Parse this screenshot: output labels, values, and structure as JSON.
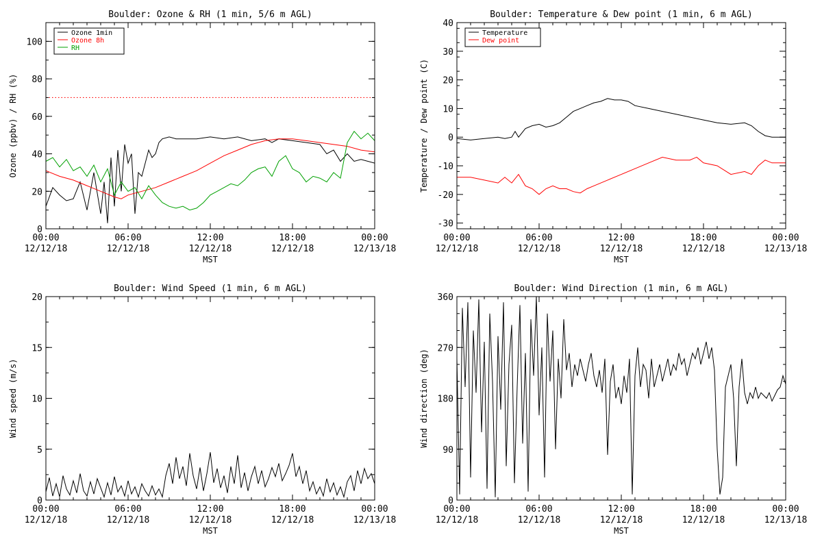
{
  "chart_data": [
    {
      "type": "line",
      "title": "Boulder: Ozone & RH (1 min, 5/6 m AGL)",
      "xlabel": "MST",
      "ylabel": "Ozone (ppbv) / RH (%)",
      "xticks": [
        {
          "h": 0,
          "time": "00:00",
          "date": "12/12/18"
        },
        {
          "h": 6,
          "time": "06:00",
          "date": "12/12/18"
        },
        {
          "h": 12,
          "time": "12:00",
          "date": "12/12/18"
        },
        {
          "h": 18,
          "time": "18:00",
          "date": "12/12/18"
        },
        {
          "h": 24,
          "time": "00:00",
          "date": "12/13/18"
        }
      ],
      "xlim": [
        0,
        24
      ],
      "ylim": [
        0,
        110
      ],
      "yticks": [
        "0",
        "20",
        "40",
        "60",
        "80",
        "100"
      ],
      "ytick_values": [
        0,
        20,
        40,
        60,
        80,
        100
      ],
      "legend_position": "top-left",
      "reference_line": {
        "value": 70,
        "color": "#ff0000",
        "style": "dotted"
      },
      "series": [
        {
          "name": "Ozone 1min",
          "color": "#000000",
          "x": [
            0,
            0.5,
            1,
            1.5,
            2,
            2.5,
            3,
            3.5,
            4,
            4.25,
            4.5,
            4.75,
            5,
            5.25,
            5.5,
            5.75,
            6,
            6.25,
            6.5,
            6.75,
            7,
            7.25,
            7.5,
            7.75,
            8,
            8.25,
            8.5,
            9,
            9.5,
            10,
            11,
            12,
            13,
            14,
            15,
            16,
            16.5,
            17,
            18,
            19,
            20,
            20.5,
            21,
            21.5,
            22,
            22.5,
            23,
            24
          ],
          "y": [
            12,
            22,
            18,
            15,
            16,
            25,
            10,
            30,
            8,
            25,
            3,
            38,
            12,
            42,
            20,
            45,
            35,
            40,
            8,
            30,
            28,
            35,
            42,
            38,
            40,
            46,
            48,
            49,
            48,
            48,
            48,
            49,
            48,
            49,
            47,
            48,
            46,
            48,
            47,
            46,
            45,
            40,
            42,
            36,
            40,
            36,
            37,
            35
          ]
        },
        {
          "name": "Ozone 8h",
          "color": "#ff0000",
          "x": [
            0,
            1,
            2,
            3,
            4,
            5,
            5.5,
            6,
            7,
            8,
            9,
            10,
            11,
            12,
            13,
            14,
            15,
            16,
            17,
            18,
            19,
            20,
            21,
            22,
            23,
            24
          ],
          "y": [
            31,
            28,
            26,
            23,
            20,
            17,
            16,
            18,
            20,
            22,
            25,
            28,
            31,
            35,
            39,
            42,
            45,
            47,
            48,
            48,
            47,
            46,
            45,
            44,
            42,
            41
          ]
        },
        {
          "name": "RH",
          "color": "#00a000",
          "x": [
            0,
            0.5,
            1,
            1.5,
            2,
            2.5,
            3,
            3.5,
            4,
            4.5,
            5,
            5.5,
            6,
            6.5,
            7,
            7.5,
            8,
            8.5,
            9,
            9.5,
            10,
            10.5,
            11,
            11.5,
            12,
            12.5,
            13,
            13.5,
            14,
            14.5,
            15,
            15.5,
            16,
            16.5,
            17,
            17.5,
            18,
            18.5,
            19,
            19.5,
            20,
            20.5,
            21,
            21.5,
            22,
            22.5,
            23,
            23.5,
            24
          ],
          "y": [
            36,
            38,
            33,
            37,
            31,
            33,
            28,
            34,
            25,
            32,
            18,
            25,
            20,
            22,
            16,
            23,
            18,
            14,
            12,
            11,
            12,
            10,
            11,
            14,
            18,
            20,
            22,
            24,
            23,
            26,
            30,
            32,
            33,
            28,
            36,
            39,
            32,
            30,
            25,
            28,
            27,
            25,
            30,
            27,
            46,
            52,
            48,
            51,
            47
          ]
        }
      ]
    },
    {
      "type": "line",
      "title": "Boulder: Temperature & Dew point (1 min, 6 m AGL)",
      "xlabel": "MST",
      "ylabel": "Temperature / Dew point (C)",
      "xticks": [
        {
          "h": 0,
          "time": "00:00",
          "date": "12/12/18"
        },
        {
          "h": 6,
          "time": "06:00",
          "date": "12/12/18"
        },
        {
          "h": 12,
          "time": "12:00",
          "date": "12/12/18"
        },
        {
          "h": 18,
          "time": "18:00",
          "date": "12/12/18"
        },
        {
          "h": 24,
          "time": "00:00",
          "date": "12/13/18"
        }
      ],
      "xlim": [
        0,
        24
      ],
      "ylim": [
        -32,
        40
      ],
      "yticks": [
        "-30",
        "-20",
        "-10",
        "0",
        "10",
        "20",
        "30",
        "40"
      ],
      "ytick_values": [
        -30,
        -20,
        -10,
        0,
        10,
        20,
        30,
        40
      ],
      "legend_position": "top-left",
      "series": [
        {
          "name": "Temperature",
          "color": "#000000",
          "x": [
            0,
            1,
            2,
            3,
            3.5,
            4,
            4.25,
            4.5,
            5,
            5.5,
            6,
            6.5,
            7,
            7.5,
            8,
            8.5,
            9,
            9.5,
            10,
            10.5,
            11,
            11.5,
            12,
            12.5,
            13,
            14,
            15,
            16,
            17,
            18,
            19,
            20,
            21,
            21.5,
            22,
            22.5,
            23,
            24
          ],
          "y": [
            -0.5,
            -1,
            -0.5,
            0,
            -0.5,
            0,
            2,
            0,
            3,
            4,
            4.5,
            3.5,
            4,
            5,
            7,
            9,
            10,
            11,
            12,
            12.5,
            13.5,
            13,
            13,
            12.5,
            11,
            10,
            9,
            8,
            7,
            6,
            5,
            4.5,
            5,
            4,
            2,
            0.5,
            0,
            0
          ]
        },
        {
          "name": "Dew point",
          "color": "#ff0000",
          "x": [
            0,
            1,
            2,
            3,
            3.5,
            4,
            4.5,
            5,
            5.5,
            6,
            6.5,
            7,
            7.5,
            8,
            8.5,
            9,
            9.5,
            10,
            11,
            12,
            13,
            14,
            15,
            16,
            17,
            17.5,
            18,
            19,
            20,
            21,
            21.5,
            22,
            22.5,
            23,
            24
          ],
          "y": [
            -14,
            -14,
            -15,
            -16,
            -14,
            -16,
            -13,
            -17,
            -18,
            -20,
            -18,
            -17,
            -18,
            -18,
            -19,
            -19.5,
            -18,
            -17,
            -15,
            -13,
            -11,
            -9,
            -7,
            -8,
            -8,
            -7,
            -9,
            -10,
            -13,
            -12,
            -13,
            -10,
            -8,
            -9,
            -9
          ]
        }
      ]
    },
    {
      "type": "line",
      "title": "Boulder: Wind Speed (1 min, 6 m AGL)",
      "xlabel": "MST",
      "ylabel": "Wind speed (m/s)",
      "xticks": [
        {
          "h": 0,
          "time": "00:00",
          "date": "12/12/18"
        },
        {
          "h": 6,
          "time": "06:00",
          "date": "12/12/18"
        },
        {
          "h": 12,
          "time": "12:00",
          "date": "12/12/18"
        },
        {
          "h": 18,
          "time": "18:00",
          "date": "12/12/18"
        },
        {
          "h": 24,
          "time": "00:00",
          "date": "12/13/18"
        }
      ],
      "xlim": [
        0,
        24
      ],
      "ylim": [
        0,
        20
      ],
      "yticks": [
        "0",
        "5",
        "10",
        "15",
        "20"
      ],
      "ytick_values": [
        0,
        5,
        10,
        15,
        20
      ],
      "series": [
        {
          "color": "#000000",
          "x": [
            0,
            0.25,
            0.5,
            0.75,
            1,
            1.25,
            1.5,
            1.75,
            2,
            2.25,
            2.5,
            2.75,
            3,
            3.25,
            3.5,
            3.75,
            4,
            4.25,
            4.5,
            4.75,
            5,
            5.25,
            5.5,
            5.75,
            6,
            6.25,
            6.5,
            6.75,
            7,
            7.25,
            7.5,
            7.75,
            8,
            8.25,
            8.5,
            8.75,
            9,
            9.25,
            9.5,
            9.75,
            10,
            10.25,
            10.5,
            10.75,
            11,
            11.25,
            11.5,
            11.75,
            12,
            12.25,
            12.5,
            12.75,
            13,
            13.25,
            13.5,
            13.75,
            14,
            14.25,
            14.5,
            14.75,
            15,
            15.25,
            15.5,
            15.75,
            16,
            16.25,
            16.5,
            16.75,
            17,
            17.25,
            17.5,
            17.75,
            18,
            18.25,
            18.5,
            18.75,
            19,
            19.25,
            19.5,
            19.75,
            20,
            20.25,
            20.5,
            20.75,
            21,
            21.25,
            21.5,
            21.75,
            22,
            22.25,
            22.5,
            22.75,
            23,
            23.25,
            23.5,
            23.75,
            24
          ],
          "y": [
            0.8,
            2.2,
            0.4,
            1.6,
            0.3,
            2.4,
            1.1,
            0.5,
            1.9,
            0.7,
            2.6,
            0.9,
            0.4,
            1.8,
            0.6,
            2.1,
            1.2,
            0.3,
            1.7,
            0.5,
            2.3,
            0.8,
            1.4,
            0.4,
            1.9,
            0.6,
            1.3,
            0.3,
            1.6,
            0.9,
            0.4,
            1.4,
            0.5,
            1.1,
            0.3,
            2.4,
            3.6,
            1.6,
            4.2,
            2.1,
            3.3,
            1.4,
            4.6,
            2.4,
            1.1,
            3.2,
            0.9,
            2.6,
            4.7,
            1.7,
            3.1,
            1.2,
            2.4,
            0.7,
            3.3,
            1.6,
            4.4,
            1.2,
            2.7,
            0.9,
            2.3,
            3.3,
            1.6,
            2.9,
            1.3,
            2.1,
            3.2,
            2.3,
            3.6,
            1.9,
            2.6,
            3.4,
            4.6,
            2.3,
            3.3,
            1.6,
            2.9,
            0.9,
            1.8,
            0.6,
            1.3,
            0.4,
            2.1,
            0.8,
            1.7,
            0.5,
            1.3,
            0.3,
            1.8,
            2.4,
            0.9,
            2.9,
            1.6,
            3.1,
            2.1,
            2.6,
            1.6
          ]
        }
      ]
    },
    {
      "type": "line",
      "title": "Boulder: Wind Direction (1 min, 6 m AGL)",
      "xlabel": "MST",
      "ylabel": "Wind direction (deg)",
      "xticks": [
        {
          "h": 0,
          "time": "00:00",
          "date": "12/12/18"
        },
        {
          "h": 6,
          "time": "06:00",
          "date": "12/12/18"
        },
        {
          "h": 12,
          "time": "12:00",
          "date": "12/12/18"
        },
        {
          "h": 18,
          "time": "18:00",
          "date": "12/12/18"
        },
        {
          "h": 24,
          "time": "00:00",
          "date": "12/13/18"
        }
      ],
      "xlim": [
        0,
        24
      ],
      "ylim": [
        0,
        360
      ],
      "yticks": [
        "0",
        "90",
        "180",
        "270",
        "360"
      ],
      "ytick_values": [
        0,
        90,
        180,
        270,
        360
      ],
      "series": [
        {
          "color": "#000000",
          "x": [
            0,
            0.2,
            0.4,
            0.6,
            0.8,
            1,
            1.2,
            1.4,
            1.6,
            1.8,
            2,
            2.2,
            2.4,
            2.6,
            2.8,
            3,
            3.2,
            3.4,
            3.6,
            3.8,
            4,
            4.2,
            4.4,
            4.6,
            4.8,
            5,
            5.2,
            5.4,
            5.6,
            5.8,
            6,
            6.2,
            6.4,
            6.6,
            6.8,
            7,
            7.2,
            7.4,
            7.6,
            7.8,
            8,
            8.2,
            8.4,
            8.6,
            8.8,
            9,
            9.2,
            9.4,
            9.6,
            9.8,
            10,
            10.2,
            10.4,
            10.6,
            10.8,
            11,
            11.2,
            11.4,
            11.6,
            11.8,
            12,
            12.2,
            12.4,
            12.6,
            12.8,
            13,
            13.2,
            13.4,
            13.6,
            13.8,
            14,
            14.2,
            14.4,
            14.6,
            14.8,
            15,
            15.2,
            15.4,
            15.6,
            15.8,
            16,
            16.2,
            16.4,
            16.6,
            16.8,
            17,
            17.2,
            17.4,
            17.6,
            17.8,
            18,
            18.2,
            18.4,
            18.6,
            18.8,
            19,
            19.2,
            19.4,
            19.6,
            19.8,
            20,
            20.2,
            20.4,
            20.6,
            20.8,
            21,
            21.2,
            21.4,
            21.6,
            21.8,
            22,
            22.2,
            22.4,
            22.6,
            22.8,
            23,
            23.2,
            23.4,
            23.6,
            23.8,
            24
          ],
          "y": [
            250,
            10,
            340,
            200,
            350,
            40,
            300,
            190,
            355,
            120,
            280,
            20,
            330,
            210,
            5,
            290,
            160,
            350,
            60,
            240,
            310,
            30,
            200,
            345,
            100,
            260,
            15,
            320,
            220,
            360,
            150,
            270,
            40,
            330,
            210,
            300,
            90,
            250,
            180,
            320,
            230,
            260,
            200,
            240,
            220,
            250,
            230,
            210,
            240,
            260,
            220,
            200,
            230,
            190,
            250,
            80,
            210,
            240,
            180,
            200,
            170,
            220,
            190,
            250,
            10,
            220,
            270,
            200,
            240,
            230,
            180,
            250,
            200,
            220,
            240,
            210,
            230,
            250,
            220,
            240,
            230,
            260,
            240,
            250,
            220,
            240,
            260,
            250,
            270,
            240,
            260,
            280,
            250,
            270,
            230,
            90,
            10,
            40,
            200,
            220,
            240,
            180,
            60,
            200,
            250,
            190,
            170,
            190,
            180,
            200,
            180,
            190,
            185,
            180,
            190,
            175,
            185,
            195,
            200,
            220,
            205
          ]
        }
      ]
    }
  ]
}
